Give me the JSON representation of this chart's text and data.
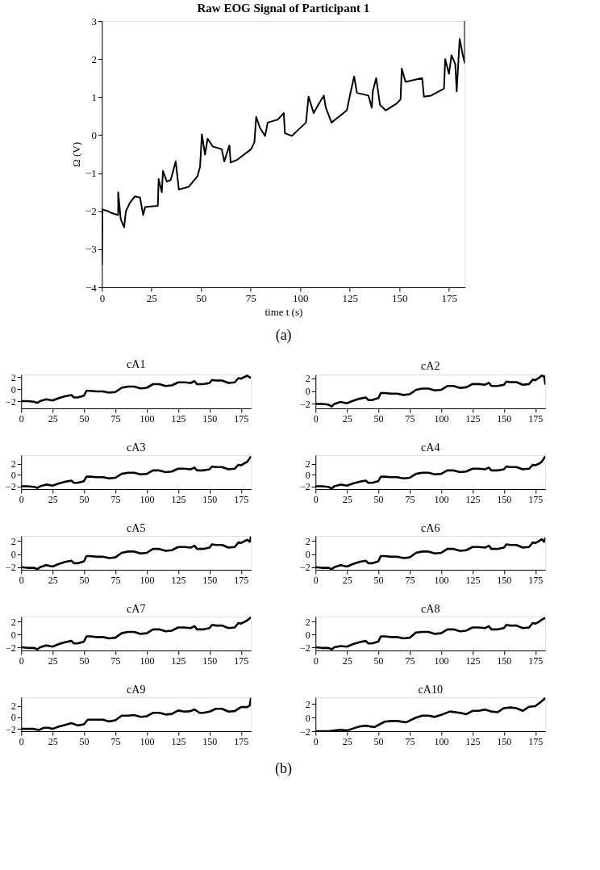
{
  "chart_data": [
    {
      "type": "line",
      "title": "Raw EOG Signal of Participant 1",
      "xlabel": "time t (s)",
      "ylabel": "Ω (V)",
      "xlim": [
        0,
        183
      ],
      "ylim": [
        -4,
        3
      ],
      "xticks": [
        0,
        25,
        50,
        75,
        100,
        125,
        150,
        175
      ],
      "yticks": [
        -4,
        -3,
        -2,
        -1,
        0,
        1,
        2,
        3
      ],
      "annotations": [
        "(a)"
      ],
      "x": [
        0,
        0.3,
        3,
        5,
        8.2,
        8.2,
        9.5,
        11.2,
        12.1,
        14.1,
        16.6,
        19.2,
        20.8,
        21.8,
        28.2,
        28.6,
        30.2,
        30.8,
        32.7,
        34.7,
        37.2,
        38.8,
        43.7,
        48.2,
        49.5,
        50.4,
        52.0,
        53.3,
        55.9,
        60.4,
        61.7,
        64.3,
        64.9,
        68.2,
        75.2,
        76.9,
        77.8,
        79.7,
        82.3,
        83.6,
        88.7,
        91.7,
        92.3,
        95.8,
        102.9,
        104.2,
        106.8,
        109.1,
        111.9,
        112.9,
        115.8,
        118.4,
        123.5,
        125.5,
        127.2,
        128.6,
        134.4,
        136.1,
        136.6,
        138.3,
        140.2,
        143.1,
        148.6,
        150.6,
        151.2,
        153.1,
        155.7,
        161.5,
        162.4,
        166.0,
        172.5,
        173.1,
        175.0,
        176.3,
        178.2,
        178.9,
        180.4,
        182.1,
        183,
        183
      ],
      "series": [
        {
          "color": "#000000",
          "values": [
            -3.4,
            -1.95,
            -2.0,
            -2.05,
            -2.1,
            -1.5,
            -2.21,
            -2.42,
            -2.0,
            -1.78,
            -1.61,
            -1.64,
            -2.1,
            -1.89,
            -1.86,
            -1.15,
            -1.5,
            -0.94,
            -1.22,
            -1.18,
            -0.69,
            -1.43,
            -1.36,
            -1.08,
            -0.83,
            0.02,
            -0.51,
            -0.09,
            -0.3,
            -0.37,
            -0.69,
            -0.27,
            -0.72,
            -0.65,
            -0.37,
            -0.19,
            0.48,
            0.19,
            -0.02,
            0.33,
            0.41,
            0.58,
            0.05,
            -0.02,
            0.33,
            1.01,
            0.58,
            0.8,
            1.04,
            0.72,
            0.33,
            0.44,
            0.65,
            1.15,
            1.54,
            1.11,
            1.04,
            0.72,
            1.15,
            1.5,
            0.8,
            0.65,
            0.83,
            0.94,
            1.75,
            1.4,
            1.43,
            1.5,
            1.01,
            1.04,
            1.22,
            2.0,
            1.61,
            2.1,
            1.86,
            1.15,
            2.53,
            2.07,
            1.89,
            3.0
          ]
        }
      ]
    },
    {
      "type": "line",
      "title": "cA1",
      "xlim": [
        0,
        183
      ],
      "ylim": [
        -3.2,
        2.4
      ],
      "xticks": [
        0,
        25,
        50,
        75,
        100,
        125,
        150,
        175
      ],
      "yticks": [
        -2,
        0,
        2
      ],
      "x": [
        0,
        5,
        10,
        13,
        15,
        20,
        25,
        30,
        35,
        40,
        42,
        45,
        50,
        52,
        55,
        60,
        65,
        70,
        75,
        80,
        85,
        90,
        95,
        100,
        105,
        110,
        115,
        120,
        125,
        130,
        135,
        138,
        140,
        145,
        150,
        152,
        155,
        160,
        165,
        170,
        173,
        175,
        178,
        180,
        183
      ],
      "series": [
        {
          "color": "#000000",
          "values": [
            -2.0,
            -2.0,
            -2.1,
            -2.3,
            -2.0,
            -1.7,
            -1.9,
            -1.5,
            -1.2,
            -1.0,
            -1.4,
            -1.4,
            -1.1,
            -0.3,
            -0.3,
            -0.4,
            -0.4,
            -0.6,
            -0.5,
            0.2,
            0.4,
            0.4,
            0.1,
            0.2,
            0.8,
            0.8,
            0.5,
            0.6,
            1.1,
            1.1,
            1.0,
            1.3,
            0.8,
            0.8,
            1.0,
            1.5,
            1.4,
            1.4,
            1.0,
            1.1,
            1.8,
            1.7,
            2.0,
            2.2,
            1.8
          ]
        }
      ]
    },
    {
      "type": "line",
      "title": "cA2",
      "xlim": [
        0,
        183
      ],
      "ylim": [
        -2.7,
        2.6
      ],
      "xticks": [
        0,
        25,
        50,
        75,
        100,
        125,
        150,
        175
      ],
      "yticks": [
        -2,
        0,
        2
      ],
      "x": [
        0,
        5,
        10,
        13,
        15,
        20,
        25,
        30,
        35,
        40,
        42,
        45,
        50,
        52,
        55,
        60,
        65,
        70,
        75,
        80,
        85,
        90,
        95,
        100,
        105,
        110,
        115,
        120,
        125,
        130,
        135,
        138,
        140,
        145,
        150,
        152,
        155,
        160,
        165,
        170,
        173,
        175,
        178,
        180,
        182,
        183
      ],
      "series": [
        {
          "color": "#000000",
          "values": [
            -2.0,
            -2.0,
            -2.1,
            -2.4,
            -2.0,
            -1.7,
            -1.9,
            -1.5,
            -1.2,
            -1.0,
            -1.4,
            -1.4,
            -1.1,
            -0.3,
            -0.3,
            -0.4,
            -0.4,
            -0.6,
            -0.5,
            0.2,
            0.4,
            0.4,
            0.1,
            0.2,
            0.8,
            0.8,
            0.5,
            0.6,
            1.1,
            1.1,
            1.0,
            1.3,
            0.8,
            0.8,
            1.0,
            1.5,
            1.4,
            1.4,
            1.0,
            1.1,
            1.8,
            1.7,
            2.1,
            2.4,
            2.3,
            1.0
          ]
        }
      ]
    },
    {
      "type": "line",
      "title": "cA3",
      "xlim": [
        0,
        183
      ],
      "ylim": [
        -2.5,
        3.5
      ],
      "xticks": [
        0,
        25,
        50,
        75,
        100,
        125,
        150,
        175
      ],
      "yticks": [
        -2,
        0,
        2
      ],
      "x": [
        0,
        5,
        10,
        13,
        15,
        20,
        25,
        30,
        35,
        40,
        42,
        45,
        50,
        52,
        55,
        60,
        65,
        70,
        75,
        80,
        85,
        90,
        95,
        100,
        105,
        110,
        115,
        120,
        125,
        130,
        135,
        138,
        140,
        145,
        150,
        152,
        155,
        160,
        165,
        170,
        173,
        175,
        178,
        180,
        183
      ],
      "series": [
        {
          "color": "#000000",
          "values": [
            -2.0,
            -2.0,
            -2.1,
            -2.3,
            -2.0,
            -1.7,
            -1.9,
            -1.5,
            -1.2,
            -1.0,
            -1.4,
            -1.4,
            -1.1,
            -0.3,
            -0.3,
            -0.4,
            -0.4,
            -0.6,
            -0.5,
            0.2,
            0.4,
            0.4,
            0.1,
            0.2,
            0.8,
            0.8,
            0.5,
            0.6,
            1.1,
            1.1,
            1.0,
            1.3,
            0.8,
            0.8,
            1.0,
            1.5,
            1.4,
            1.4,
            1.0,
            1.1,
            1.8,
            1.7,
            2.1,
            2.3,
            3.3
          ]
        }
      ]
    },
    {
      "type": "line",
      "title": "cA4",
      "xlim": [
        0,
        183
      ],
      "ylim": [
        -2.5,
        3.5
      ],
      "xticks": [
        0,
        25,
        50,
        75,
        100,
        125,
        150,
        175
      ],
      "yticks": [
        -2,
        0,
        2
      ],
      "x": [
        0,
        5,
        10,
        13,
        15,
        20,
        25,
        30,
        35,
        40,
        42,
        45,
        50,
        52,
        55,
        60,
        65,
        70,
        75,
        80,
        85,
        90,
        95,
        100,
        105,
        110,
        115,
        120,
        125,
        130,
        135,
        138,
        140,
        145,
        150,
        152,
        155,
        160,
        165,
        170,
        173,
        175,
        178,
        180,
        183
      ],
      "series": [
        {
          "color": "#000000",
          "values": [
            -2.0,
            -2.0,
            -2.1,
            -2.4,
            -2.0,
            -1.7,
            -1.9,
            -1.5,
            -1.2,
            -1.0,
            -1.4,
            -1.4,
            -1.1,
            -0.3,
            -0.3,
            -0.4,
            -0.4,
            -0.6,
            -0.5,
            0.2,
            0.4,
            0.4,
            0.1,
            0.2,
            0.8,
            0.8,
            0.5,
            0.6,
            1.1,
            1.1,
            1.0,
            1.3,
            0.8,
            0.8,
            1.0,
            1.5,
            1.4,
            1.4,
            1.0,
            1.1,
            1.8,
            1.7,
            2.0,
            2.3,
            3.3
          ]
        }
      ]
    },
    {
      "type": "line",
      "title": "cA5",
      "xlim": [
        0,
        183
      ],
      "ylim": [
        -2.4,
        2.8
      ],
      "xticks": [
        0,
        25,
        50,
        75,
        100,
        125,
        150,
        175
      ],
      "yticks": [
        -2,
        0,
        2
      ],
      "x": [
        0,
        5,
        10,
        13,
        15,
        20,
        25,
        30,
        35,
        40,
        42,
        45,
        50,
        52,
        55,
        60,
        65,
        70,
        75,
        80,
        85,
        90,
        95,
        100,
        105,
        110,
        115,
        120,
        125,
        130,
        135,
        138,
        140,
        145,
        150,
        152,
        155,
        160,
        165,
        170,
        173,
        175,
        178,
        180,
        182,
        183
      ],
      "series": [
        {
          "color": "#000000",
          "values": [
            -2.0,
            -2.1,
            -2.1,
            -2.3,
            -2.0,
            -1.7,
            -1.9,
            -1.5,
            -1.2,
            -1.0,
            -1.4,
            -1.4,
            -1.1,
            -0.3,
            -0.3,
            -0.4,
            -0.4,
            -0.6,
            -0.5,
            0.2,
            0.4,
            0.4,
            0.1,
            0.2,
            0.8,
            0.8,
            0.5,
            0.6,
            1.1,
            1.1,
            1.0,
            1.3,
            0.8,
            0.8,
            1.0,
            1.5,
            1.4,
            1.4,
            1.0,
            1.1,
            1.8,
            1.7,
            2.0,
            2.2,
            1.9,
            2.7
          ]
        }
      ]
    },
    {
      "type": "line",
      "title": "cA6",
      "xlim": [
        0,
        183
      ],
      "ylim": [
        -2.4,
        2.8
      ],
      "xticks": [
        0,
        25,
        50,
        75,
        100,
        125,
        150,
        175
      ],
      "yticks": [
        -2,
        0,
        2
      ],
      "x": [
        0,
        5,
        10,
        13,
        15,
        20,
        25,
        30,
        35,
        40,
        42,
        45,
        50,
        52,
        55,
        60,
        65,
        70,
        75,
        80,
        85,
        90,
        95,
        100,
        105,
        110,
        115,
        120,
        125,
        130,
        135,
        138,
        140,
        145,
        150,
        152,
        155,
        160,
        165,
        170,
        173,
        175,
        178,
        180,
        182,
        183
      ],
      "series": [
        {
          "color": "#000000",
          "values": [
            -2.0,
            -2.1,
            -2.1,
            -2.3,
            -2.0,
            -1.7,
            -1.9,
            -1.5,
            -1.2,
            -1.0,
            -1.4,
            -1.4,
            -1.1,
            -0.3,
            -0.3,
            -0.4,
            -0.4,
            -0.6,
            -0.5,
            0.2,
            0.4,
            0.4,
            0.1,
            0.2,
            0.8,
            0.8,
            0.5,
            0.6,
            1.1,
            1.1,
            1.0,
            1.3,
            0.8,
            0.8,
            1.0,
            1.5,
            1.4,
            1.4,
            1.0,
            1.1,
            1.8,
            1.7,
            2.0,
            2.3,
            1.9,
            2.5
          ]
        }
      ]
    },
    {
      "type": "line",
      "title": "cA7",
      "xlim": [
        0,
        183
      ],
      "ylim": [
        -2.5,
        2.8
      ],
      "xticks": [
        0,
        25,
        50,
        75,
        100,
        125,
        150,
        175
      ],
      "yticks": [
        -2,
        0,
        2
      ],
      "x": [
        0,
        5,
        10,
        13,
        15,
        20,
        25,
        30,
        35,
        40,
        42,
        45,
        50,
        52,
        55,
        60,
        65,
        70,
        75,
        80,
        85,
        90,
        95,
        100,
        105,
        110,
        115,
        120,
        125,
        130,
        135,
        138,
        140,
        145,
        150,
        152,
        155,
        160,
        165,
        170,
        173,
        175,
        178,
        180,
        183
      ],
      "series": [
        {
          "color": "#000000",
          "values": [
            -2.0,
            -2.1,
            -2.1,
            -2.3,
            -2.0,
            -1.7,
            -1.9,
            -1.5,
            -1.2,
            -1.0,
            -1.4,
            -1.4,
            -1.1,
            -0.3,
            -0.3,
            -0.4,
            -0.4,
            -0.6,
            -0.5,
            0.2,
            0.4,
            0.4,
            0.1,
            0.2,
            0.8,
            0.8,
            0.5,
            0.6,
            1.1,
            1.1,
            1.0,
            1.3,
            0.8,
            0.8,
            1.0,
            1.5,
            1.4,
            1.4,
            1.0,
            1.1,
            1.8,
            1.7,
            2.0,
            2.2,
            2.7
          ]
        }
      ]
    },
    {
      "type": "line",
      "title": "cA8",
      "xlim": [
        0,
        183
      ],
      "ylim": [
        -2.5,
        2.8
      ],
      "xticks": [
        0,
        25,
        50,
        75,
        100,
        125,
        150,
        175
      ],
      "yticks": [
        -2,
        0,
        2
      ],
      "x": [
        0,
        5,
        10,
        13,
        15,
        20,
        25,
        30,
        35,
        40,
        42,
        45,
        50,
        52,
        55,
        60,
        65,
        70,
        75,
        80,
        85,
        90,
        95,
        100,
        105,
        110,
        115,
        120,
        125,
        130,
        135,
        138,
        140,
        145,
        150,
        152,
        155,
        160,
        165,
        170,
        173,
        175,
        178,
        180,
        183
      ],
      "series": [
        {
          "color": "#000000",
          "values": [
            -2.0,
            -2.1,
            -2.1,
            -2.3,
            -2.0,
            -1.8,
            -1.9,
            -1.5,
            -1.2,
            -1.0,
            -1.4,
            -1.4,
            -1.1,
            -0.3,
            -0.3,
            -0.4,
            -0.4,
            -0.6,
            -0.5,
            0.3,
            0.4,
            0.4,
            0.1,
            0.2,
            0.8,
            0.8,
            0.5,
            0.6,
            1.1,
            1.1,
            1.0,
            1.3,
            0.8,
            0.8,
            1.0,
            1.5,
            1.4,
            1.4,
            1.0,
            1.1,
            1.8,
            1.7,
            2.0,
            2.3,
            2.6
          ]
        }
      ]
    },
    {
      "type": "line",
      "title": "cA9",
      "xlim": [
        0,
        183
      ],
      "ylim": [
        -2.4,
        3.5
      ],
      "xticks": [
        0,
        25,
        50,
        75,
        100,
        125,
        150,
        175
      ],
      "yticks": [
        -2,
        0,
        2
      ],
      "x": [
        0,
        5,
        10,
        14,
        18,
        22,
        25,
        30,
        35,
        40,
        45,
        50,
        53,
        60,
        65,
        70,
        75,
        80,
        85,
        90,
        95,
        100,
        105,
        110,
        115,
        120,
        125,
        130,
        135,
        138,
        142,
        145,
        150,
        155,
        160,
        165,
        170,
        175,
        180,
        182,
        183
      ],
      "series": [
        {
          "color": "#000000",
          "values": [
            -2.0,
            -2.0,
            -2.0,
            -2.2,
            -1.8,
            -1.8,
            -2.0,
            -1.6,
            -1.3,
            -1.0,
            -1.4,
            -1.2,
            -0.4,
            -0.4,
            -0.4,
            -0.7,
            -0.5,
            0.3,
            0.3,
            0.4,
            0.1,
            0.2,
            0.8,
            0.8,
            0.5,
            0.6,
            1.2,
            1.0,
            1.1,
            1.4,
            0.8,
            0.8,
            1.0,
            1.5,
            1.5,
            1.0,
            1.1,
            1.8,
            1.8,
            2.1,
            3.4
          ]
        }
      ]
    },
    {
      "type": "line",
      "title": "cA10",
      "xlim": [
        0,
        183
      ],
      "ylim": [
        -2.0,
        3.0
      ],
      "xticks": [
        0,
        25,
        50,
        75,
        100,
        125,
        150,
        175
      ],
      "yticks": [
        -2,
        0,
        2
      ],
      "annotations": [
        "(b)"
      ],
      "x": [
        0,
        10,
        20,
        25,
        35,
        40,
        47,
        55,
        60,
        65,
        72,
        80,
        85,
        90,
        95,
        100,
        107,
        115,
        120,
        125,
        130,
        135,
        140,
        145,
        150,
        155,
        160,
        165,
        170,
        175,
        180,
        183
      ],
      "series": [
        {
          "color": "#000000",
          "values": [
            -2.0,
            -2.0,
            -1.8,
            -1.9,
            -1.3,
            -1.2,
            -1.4,
            -0.6,
            -0.5,
            -0.5,
            -0.7,
            0.0,
            0.3,
            0.3,
            0.1,
            0.4,
            0.9,
            0.7,
            0.5,
            1.0,
            1.0,
            1.2,
            0.9,
            0.8,
            1.4,
            1.5,
            1.4,
            1.0,
            1.6,
            1.7,
            2.4,
            2.9
          ]
        }
      ]
    }
  ]
}
